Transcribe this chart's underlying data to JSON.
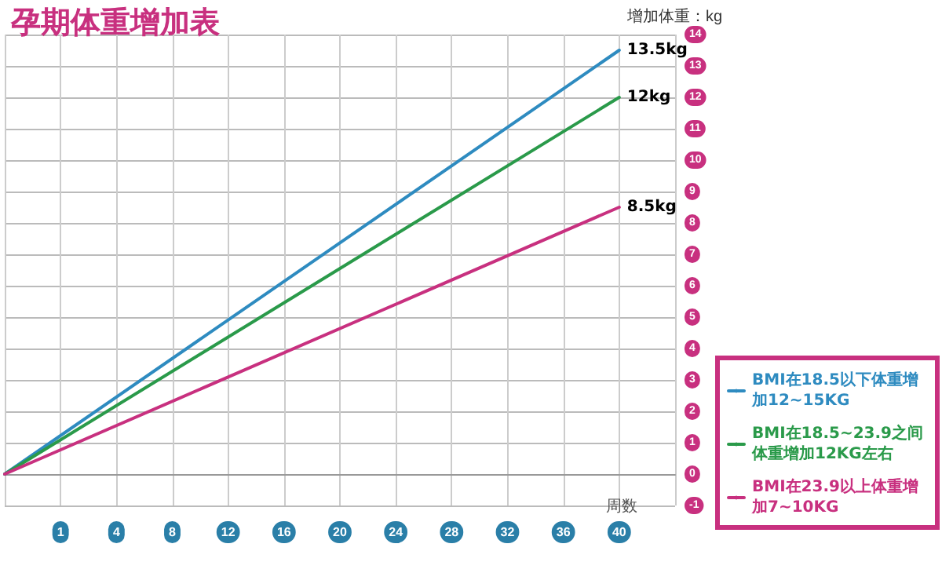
{
  "chart_data": {
    "type": "line",
    "title": "孕期体重增加表",
    "xlabel": "周数",
    "ylabel": "增加体重：kg",
    "categories": [
      null,
      "1",
      "4",
      "8",
      "12",
      "16",
      "20",
      "24",
      "28",
      "32",
      "36",
      "40",
      null
    ],
    "series": [
      {
        "name": "BMI在18.5以下体重增加12~15KG",
        "color": "#2e8bc0",
        "values": [
          0,
          null,
          null,
          null,
          null,
          null,
          null,
          null,
          null,
          null,
          null,
          13.5,
          null
        ],
        "value_labels": [
          null,
          null,
          null,
          null,
          null,
          null,
          null,
          null,
          null,
          null,
          null,
          "13.5kg",
          null
        ]
      },
      {
        "name": "BMI在18.5~23.9之间体重增加12KG左右",
        "color": "#2a9a4a",
        "values": [
          0,
          null,
          null,
          null,
          null,
          null,
          null,
          null,
          null,
          null,
          null,
          12,
          null
        ],
        "value_labels": [
          null,
          null,
          null,
          null,
          null,
          null,
          null,
          null,
          null,
          null,
          null,
          "12kg",
          null
        ]
      },
      {
        "name": "BMI在23.9以上体重增加7~10KG",
        "color": "#c8307f",
        "values": [
          0,
          null,
          null,
          null,
          null,
          null,
          null,
          null,
          null,
          null,
          null,
          8.5,
          null
        ],
        "value_labels": [
          null,
          null,
          null,
          null,
          null,
          null,
          null,
          null,
          null,
          null,
          null,
          "8.5kg",
          null
        ]
      }
    ],
    "ylim": [
      -1,
      14
    ],
    "yticks": [
      -1,
      0,
      1,
      2,
      3,
      4,
      5,
      6,
      7,
      8,
      9,
      10,
      11,
      12,
      13,
      14
    ],
    "grid": true,
    "legend": "bottom right",
    "marker": "none",
    "line_style": "solid"
  }
}
